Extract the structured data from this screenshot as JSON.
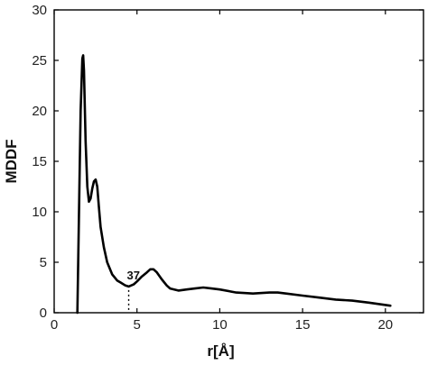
{
  "chart_data": {
    "type": "line",
    "xlabel": "r[Å]",
    "ylabel": "MDDF",
    "xlim": [
      0,
      22.3
    ],
    "ylim": [
      0,
      30
    ],
    "xticks": [
      0,
      5,
      10,
      15,
      20
    ],
    "yticks": [
      0,
      5,
      10,
      15,
      20,
      25,
      30
    ],
    "grid": false,
    "series": [
      {
        "x": [
          1.4,
          1.5,
          1.6,
          1.7,
          1.75,
          1.8,
          1.9,
          2.0,
          2.1,
          2.2,
          2.3,
          2.4,
          2.5,
          2.6,
          2.7,
          2.8,
          3.0,
          3.2,
          3.5,
          3.8,
          4.0,
          4.3,
          4.5,
          4.8,
          5.0,
          5.3,
          5.6,
          5.8,
          6.0,
          6.2,
          6.5,
          6.8,
          7.0,
          7.5,
          8.0,
          8.5,
          9.0,
          9.5,
          10.0,
          11.0,
          12.0,
          13.0,
          13.5,
          14.0,
          15.0,
          16.0,
          17.0,
          18.0,
          19.0,
          20.3
        ],
        "y": [
          0,
          10,
          20,
          25.2,
          25.5,
          24.0,
          17.0,
          12.5,
          11.0,
          11.3,
          12.3,
          13.0,
          13.2,
          12.5,
          10.5,
          8.5,
          6.5,
          5.0,
          3.8,
          3.2,
          3.0,
          2.7,
          2.6,
          2.8,
          3.1,
          3.6,
          4.0,
          4.3,
          4.3,
          4.0,
          3.3,
          2.7,
          2.4,
          2.2,
          2.3,
          2.4,
          2.5,
          2.4,
          2.3,
          2.0,
          1.9,
          2.0,
          2.0,
          1.9,
          1.7,
          1.5,
          1.3,
          1.2,
          1.0,
          0.7
        ]
      }
    ],
    "marker": {
      "x": 4.5,
      "y": 2.6,
      "label": "37"
    }
  }
}
